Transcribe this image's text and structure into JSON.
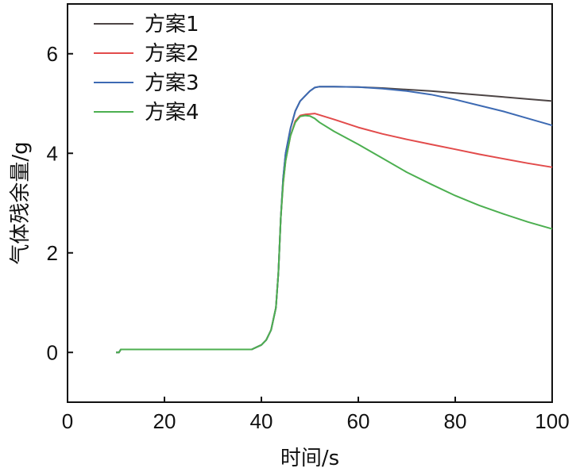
{
  "chart_data": {
    "type": "line",
    "xlabel": "时间/s",
    "ylabel": "气体残余量/g",
    "xlim": [
      0,
      100
    ],
    "ylim": [
      -1,
      7
    ],
    "xticks": [
      "0",
      "20",
      "40",
      "60",
      "80",
      "100"
    ],
    "yticks": [
      "0",
      "2",
      "4",
      "6"
    ],
    "legend_position": "top-left",
    "series": [
      {
        "name": "方案1",
        "color": "#4d4545",
        "x": [
          10,
          10.6,
          11,
          38,
          40,
          41,
          42,
          43,
          43.5,
          44,
          44.5,
          45,
          46,
          47,
          48,
          49,
          50,
          51,
          52,
          55,
          60,
          65,
          70,
          75,
          80,
          85,
          90,
          95,
          100
        ],
        "y": [
          0,
          0,
          0.06,
          0.06,
          0.15,
          0.25,
          0.45,
          0.9,
          1.6,
          2.7,
          3.5,
          4.0,
          4.5,
          4.85,
          5.05,
          5.15,
          5.25,
          5.32,
          5.34,
          5.34,
          5.33,
          5.31,
          5.28,
          5.25,
          5.21,
          5.17,
          5.13,
          5.09,
          5.05
        ]
      },
      {
        "name": "方案2",
        "color": "#e24b4b",
        "x": [
          10,
          10.6,
          11,
          38,
          40,
          41,
          42,
          43,
          43.5,
          44,
          44.5,
          45,
          46,
          47,
          48,
          49,
          50,
          51,
          52,
          55,
          60,
          65,
          70,
          75,
          80,
          85,
          90,
          95,
          100
        ],
        "y": [
          0,
          0,
          0.06,
          0.06,
          0.15,
          0.25,
          0.45,
          0.9,
          1.6,
          2.7,
          3.4,
          3.85,
          4.35,
          4.65,
          4.76,
          4.78,
          4.79,
          4.8,
          4.77,
          4.68,
          4.52,
          4.39,
          4.28,
          4.18,
          4.08,
          3.98,
          3.89,
          3.8,
          3.72
        ]
      },
      {
        "name": "方案3",
        "color": "#3d6ab3",
        "x": [
          10,
          10.6,
          11,
          38,
          40,
          41,
          42,
          43,
          43.5,
          44,
          44.5,
          45,
          46,
          47,
          48,
          49,
          50,
          51,
          52,
          55,
          60,
          65,
          70,
          75,
          80,
          85,
          90,
          95,
          100
        ],
        "y": [
          0,
          0,
          0.06,
          0.06,
          0.15,
          0.25,
          0.45,
          0.9,
          1.6,
          2.7,
          3.5,
          4.0,
          4.5,
          4.85,
          5.05,
          5.15,
          5.25,
          5.32,
          5.34,
          5.34,
          5.33,
          5.3,
          5.25,
          5.18,
          5.08,
          4.96,
          4.84,
          4.7,
          4.56
        ]
      },
      {
        "name": "方案4",
        "color": "#4caf50",
        "x": [
          10,
          10.6,
          11,
          38,
          40,
          41,
          42,
          43,
          43.5,
          44,
          44.5,
          45,
          46,
          47,
          48,
          49,
          50,
          51,
          52,
          55,
          60,
          65,
          70,
          75,
          80,
          85,
          90,
          95,
          100
        ],
        "y": [
          0,
          0,
          0.06,
          0.06,
          0.15,
          0.25,
          0.45,
          0.9,
          1.6,
          2.7,
          3.4,
          3.85,
          4.35,
          4.62,
          4.74,
          4.76,
          4.75,
          4.7,
          4.62,
          4.44,
          4.18,
          3.9,
          3.62,
          3.38,
          3.15,
          2.95,
          2.78,
          2.62,
          2.48
        ]
      }
    ]
  }
}
